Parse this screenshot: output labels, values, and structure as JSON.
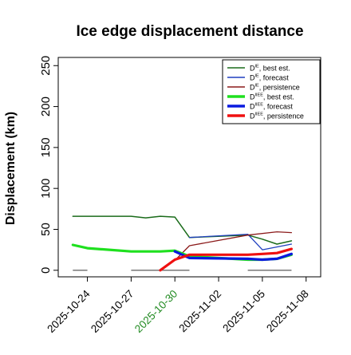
{
  "chart_data": {
    "type": "line",
    "title": "Ice edge displacement distance",
    "ylabel": "Displacement (km)",
    "xlabel": "",
    "ylim": [
      -8,
      260
    ],
    "xlim": [
      "2025-10-22",
      "2025-11-09"
    ],
    "yticks": [
      0,
      50,
      100,
      150,
      200,
      250
    ],
    "xticks": [
      {
        "date": "2025-10-24",
        "label": "2025-10-24",
        "color": "#000000"
      },
      {
        "date": "2025-10-27",
        "label": "2025-10-27",
        "color": "#000000"
      },
      {
        "date": "2025-10-30",
        "label": "2025-10-30",
        "color": "#228B22"
      },
      {
        "date": "2025-11-02",
        "label": "2025-11-02",
        "color": "#000000"
      },
      {
        "date": "2025-11-05",
        "label": "2025-11-05",
        "color": "#000000"
      },
      {
        "date": "2025-11-08",
        "label": "2025-11-08",
        "color": "#000000"
      }
    ],
    "grid": false,
    "legend_position": "top-right",
    "series": [
      {
        "name": "D^IE, best est.",
        "main": "D",
        "sup": "IE",
        "suffix": ", best est.",
        "color": "#1a6b1a",
        "width": 1.5,
        "points": [
          [
            "2025-10-23",
            66
          ],
          [
            "2025-10-24",
            66
          ],
          [
            "2025-10-27",
            66
          ],
          [
            "2025-10-28",
            64
          ],
          [
            "2025-10-29",
            66
          ],
          [
            "2025-10-30",
            65
          ],
          [
            "2025-10-31",
            40
          ],
          [
            "2025-11-04",
            43
          ],
          [
            "2025-11-05",
            38
          ],
          [
            "2025-11-06",
            32
          ],
          [
            "2025-11-07",
            36
          ]
        ]
      },
      {
        "name": "D^IE, forecast",
        "main": "D",
        "sup": "IE",
        "suffix": ", forecast",
        "color": "#1f3fbf",
        "width": 1.3,
        "points": [
          [
            "2025-10-31",
            40
          ],
          [
            "2025-11-04",
            44
          ],
          [
            "2025-11-05",
            25
          ],
          [
            "2025-11-07",
            32
          ]
        ]
      },
      {
        "name": "D^IE, persistence",
        "main": "D",
        "sup": "IE",
        "suffix": ", persistence",
        "color": "#8b1a1a",
        "width": 1.3,
        "points": [
          [
            "2025-10-30",
            12
          ],
          [
            "2025-10-31",
            30
          ],
          [
            "2025-11-04",
            43
          ],
          [
            "2025-11-06",
            47
          ],
          [
            "2025-11-07",
            46
          ]
        ]
      },
      {
        "name": "D^IIEE, best est.",
        "main": "D",
        "sup": "IIEE",
        "suffix": ", best est.",
        "color": "#1fe01f",
        "width": 3.2,
        "points": [
          [
            "2025-10-23",
            31
          ],
          [
            "2025-10-24",
            27
          ],
          [
            "2025-10-27",
            23
          ],
          [
            "2025-10-29",
            23
          ],
          [
            "2025-10-30",
            24
          ],
          [
            "2025-10-31",
            17
          ],
          [
            "2025-11-04",
            13
          ],
          [
            "2025-11-05",
            13
          ],
          [
            "2025-11-06",
            14
          ],
          [
            "2025-11-07",
            19
          ]
        ]
      },
      {
        "name": "D^IIEE, forecast",
        "main": "D",
        "sup": "IIEE",
        "suffix": ", forecast",
        "color": "#0a1adf",
        "width": 3.2,
        "points": [
          [
            "2025-10-30",
            23
          ],
          [
            "2025-10-31",
            15
          ],
          [
            "2025-11-04",
            14
          ],
          [
            "2025-11-05",
            13
          ],
          [
            "2025-11-06",
            14
          ],
          [
            "2025-11-07",
            20
          ]
        ]
      },
      {
        "name": "D^IIEE, persistence",
        "main": "D",
        "sup": "IIEE",
        "suffix": ", persistence",
        "color": "#ef1010",
        "width": 3.2,
        "points": [
          [
            "2025-10-29",
            0
          ],
          [
            "2025-10-30",
            13
          ],
          [
            "2025-10-31",
            19
          ],
          [
            "2025-11-04",
            19
          ],
          [
            "2025-11-05",
            20
          ],
          [
            "2025-11-06",
            21
          ],
          [
            "2025-11-07",
            26
          ]
        ]
      }
    ],
    "baseline_segments": {
      "color": "#777777",
      "y": 0,
      "segments": [
        [
          "2025-10-23",
          "2025-10-24"
        ],
        [
          "2025-10-27",
          "2025-10-31"
        ],
        [
          "2025-11-04",
          "2025-11-07"
        ]
      ]
    }
  }
}
